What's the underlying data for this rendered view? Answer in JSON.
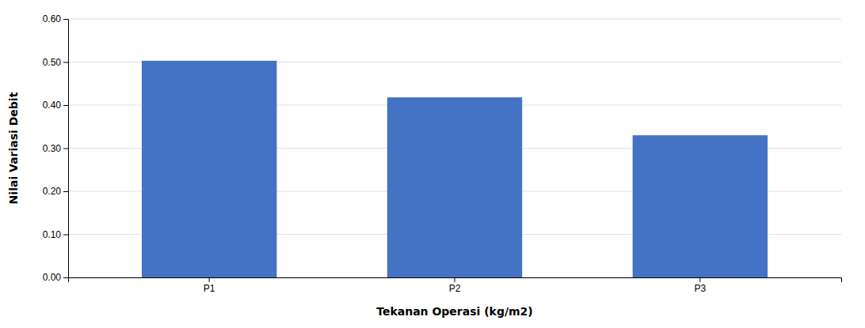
{
  "chart_data": {
    "type": "bar",
    "categories": [
      "P1",
      "P2",
      "P3"
    ],
    "values": [
      0.503,
      0.418,
      0.33
    ],
    "color": "#4472C4",
    "xlabel": "Tekanan Operasi (kg/m2)",
    "ylabel": "Nilai Variasi Debit",
    "ylim": [
      0.0,
      0.6
    ],
    "yticks": [
      {
        "value": 0.0,
        "label": "0.00"
      },
      {
        "value": 0.1,
        "label": "0.10"
      },
      {
        "value": 0.2,
        "label": "0.20"
      },
      {
        "value": 0.3,
        "label": "0.30"
      },
      {
        "value": 0.4,
        "label": "0.40"
      },
      {
        "value": 0.5,
        "label": "0.50"
      },
      {
        "value": 0.6,
        "label": "0.60"
      }
    ],
    "grid": true
  }
}
